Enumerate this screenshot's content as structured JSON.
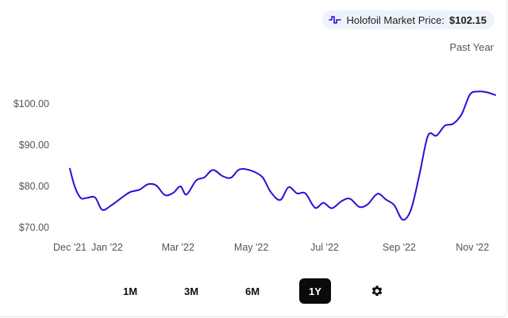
{
  "header": {
    "price_label": "Holofoil Market Price:",
    "price_value": "$102.15",
    "range_label": "Past Year",
    "icon": "waveform-icon"
  },
  "periods": [
    {
      "label": "1M",
      "active": false
    },
    {
      "label": "3M",
      "active": false
    },
    {
      "label": "6M",
      "active": false
    },
    {
      "label": "1Y",
      "active": true
    }
  ],
  "settings_icon": "gear-icon",
  "colors": {
    "line": "#2a0fd6",
    "active_bg": "#0a0a0a",
    "pill_bg": "#eef3fb"
  },
  "chart_data": {
    "type": "line",
    "title": "",
    "xlabel": "",
    "ylabel": "",
    "x_ticks": [
      "Dec '21",
      "Jan '22",
      "Mar '22",
      "May '22",
      "Jul '22",
      "Sep '22",
      "Nov '22"
    ],
    "y_ticks": [
      "$70.00",
      "$80.00",
      "$90.00",
      "$100.00"
    ],
    "y_tick_values": [
      70,
      80,
      90,
      100
    ],
    "ylim": [
      67.5,
      104
    ],
    "grid": false,
    "series": [
      {
        "name": "Holofoil Market Price",
        "points": [
          [
            "2021-12-01",
            84.3
          ],
          [
            "2021-12-05",
            80.0
          ],
          [
            "2021-12-10",
            77.2
          ],
          [
            "2021-12-15",
            77.2
          ],
          [
            "2021-12-22",
            77.3
          ],
          [
            "2021-12-28",
            74.3
          ],
          [
            "2022-01-05",
            75.5
          ],
          [
            "2022-01-12",
            77.0
          ],
          [
            "2022-01-20",
            78.6
          ],
          [
            "2022-01-28",
            79.2
          ],
          [
            "2022-02-04",
            80.5
          ],
          [
            "2022-02-11",
            80.2
          ],
          [
            "2022-02-18",
            77.9
          ],
          [
            "2022-02-25",
            78.4
          ],
          [
            "2022-03-03",
            80.0
          ],
          [
            "2022-03-08",
            78.0
          ],
          [
            "2022-03-16",
            81.4
          ],
          [
            "2022-03-23",
            82.2
          ],
          [
            "2022-03-30",
            84.0
          ],
          [
            "2022-04-07",
            82.5
          ],
          [
            "2022-04-14",
            82.1
          ],
          [
            "2022-04-21",
            84.1
          ],
          [
            "2022-04-30",
            83.9
          ],
          [
            "2022-05-10",
            82.3
          ],
          [
            "2022-05-17",
            78.7
          ],
          [
            "2022-05-25",
            76.7
          ],
          [
            "2022-06-01",
            79.8
          ],
          [
            "2022-06-08",
            78.3
          ],
          [
            "2022-06-15",
            78.3
          ],
          [
            "2022-06-23",
            74.8
          ],
          [
            "2022-06-30",
            76.0
          ],
          [
            "2022-07-07",
            74.7
          ],
          [
            "2022-07-15",
            76.4
          ],
          [
            "2022-07-22",
            77.0
          ],
          [
            "2022-07-30",
            75.0
          ],
          [
            "2022-08-06",
            75.7
          ],
          [
            "2022-08-14",
            78.2
          ],
          [
            "2022-08-21",
            76.8
          ],
          [
            "2022-08-28",
            75.4
          ],
          [
            "2022-09-04",
            71.9
          ],
          [
            "2022-09-11",
            74.5
          ],
          [
            "2022-09-18",
            83.0
          ],
          [
            "2022-09-25",
            92.3
          ],
          [
            "2022-10-02",
            92.3
          ],
          [
            "2022-10-09",
            94.7
          ],
          [
            "2022-10-16",
            95.2
          ],
          [
            "2022-10-23",
            97.5
          ],
          [
            "2022-10-30",
            102.3
          ],
          [
            "2022-11-06",
            103.0
          ],
          [
            "2022-11-13",
            102.8
          ],
          [
            "2022-11-20",
            102.15
          ]
        ]
      }
    ]
  }
}
